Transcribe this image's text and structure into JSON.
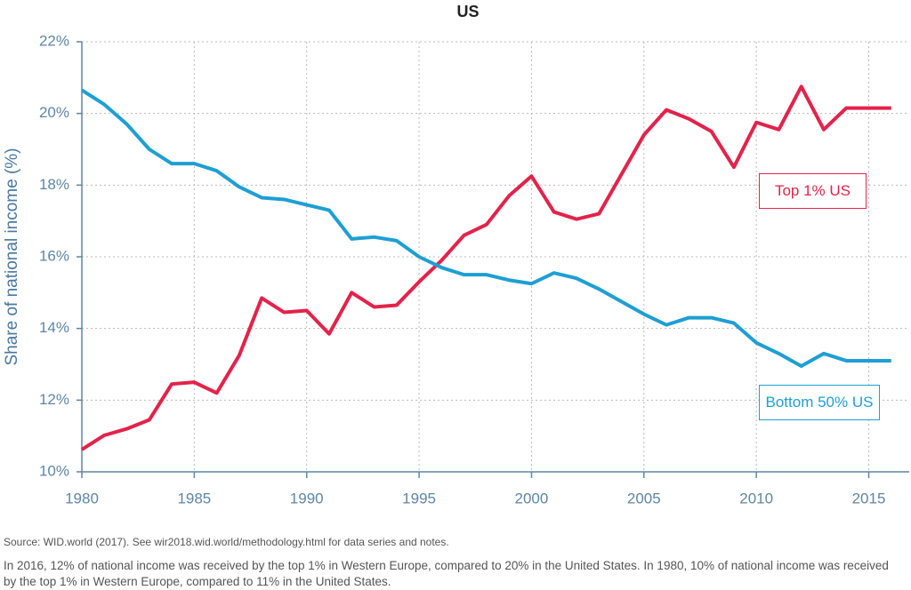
{
  "chart_data": {
    "type": "line",
    "title": "US",
    "y_label": "Share of national income (%)",
    "x": [
      1980,
      1981,
      1982,
      1983,
      1984,
      1985,
      1986,
      1987,
      1988,
      1989,
      1990,
      1991,
      1992,
      1993,
      1994,
      1995,
      1996,
      1997,
      1998,
      1999,
      2000,
      2001,
      2002,
      2003,
      2004,
      2005,
      2006,
      2007,
      2008,
      2009,
      2010,
      2011,
      2012,
      2013,
      2014,
      2015,
      2016
    ],
    "series": [
      {
        "name": "Top 1% US",
        "color": "#e4224a",
        "values": [
          10.62,
          11.02,
          11.2,
          11.45,
          12.45,
          12.5,
          12.2,
          13.25,
          14.85,
          14.45,
          14.5,
          13.85,
          15.0,
          14.6,
          14.65,
          15.3,
          15.9,
          16.6,
          16.9,
          17.7,
          18.25,
          17.25,
          17.05,
          17.2,
          18.3,
          19.4,
          20.1,
          19.85,
          19.5,
          18.5,
          19.75,
          19.55,
          20.75,
          19.55,
          20.15,
          20.15,
          20.15
        ]
      },
      {
        "name": "Bottom 50% US",
        "color": "#1e9fd4",
        "values": [
          20.65,
          20.25,
          19.7,
          19.0,
          18.6,
          18.6,
          18.4,
          17.95,
          17.65,
          17.6,
          17.45,
          17.3,
          16.5,
          16.55,
          16.45,
          16.0,
          15.7,
          15.5,
          15.5,
          15.35,
          15.25,
          15.55,
          15.4,
          15.1,
          14.75,
          14.4,
          14.1,
          14.3,
          14.3,
          14.15,
          13.6,
          13.3,
          12.95,
          13.3,
          13.1,
          13.1,
          13.1
        ]
      }
    ],
    "xlim": [
      1980,
      2016.8
    ],
    "xticks": [
      1980,
      1985,
      1990,
      1995,
      2000,
      2005,
      2010,
      2015
    ],
    "ylim": [
      10,
      22
    ],
    "yticks": [
      {
        "value": 10,
        "label": "10%"
      },
      {
        "value": 12,
        "label": "12%"
      },
      {
        "value": 14,
        "label": "14%"
      },
      {
        "value": 16,
        "label": "16%"
      },
      {
        "value": 18,
        "label": "18%"
      },
      {
        "value": 20,
        "label": "20%"
      },
      {
        "value": 22,
        "label": "22%"
      }
    ],
    "grid": true,
    "source": "Source:  WID.world (2017). See wir2018.wid.world/methodology.html for data series and notes.",
    "note": "In 2016, 12% of national income was received by the top 1% in Western Europe, compared to 20% in the United States. In 1980, 10% of national income was received by the top 1% in Western Europe, compared to 11% in the United States."
  }
}
